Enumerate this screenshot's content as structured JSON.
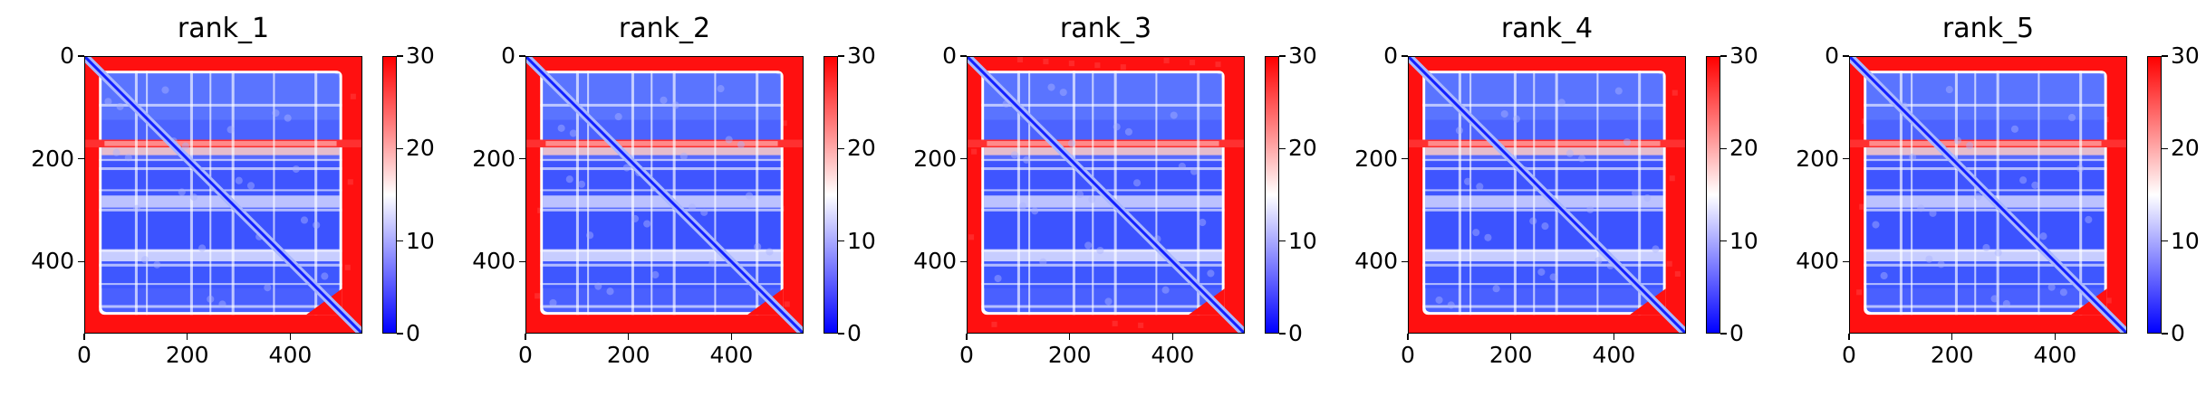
{
  "chart_data": [
    {
      "type": "heatmap",
      "title": "rank_1",
      "x_ticks": [
        "0",
        "200",
        "400"
      ],
      "y_ticks": [
        "0",
        "200",
        "400"
      ],
      "xlim": [
        0,
        540
      ],
      "ylim": [
        540,
        0
      ],
      "colorbar": {
        "min": 0,
        "max": 30,
        "ticks": [
          "0",
          "10",
          "20",
          "30"
        ]
      },
      "colormap": [
        "#0000ff",
        "#ffffff",
        "#ff0000"
      ]
    },
    {
      "type": "heatmap",
      "title": "rank_2",
      "x_ticks": [
        "0",
        "200",
        "400"
      ],
      "y_ticks": [
        "0",
        "200",
        "400"
      ],
      "xlim": [
        0,
        540
      ],
      "ylim": [
        540,
        0
      ],
      "colorbar": {
        "min": 0,
        "max": 30,
        "ticks": [
          "0",
          "10",
          "20",
          "30"
        ]
      },
      "colormap": [
        "#0000ff",
        "#ffffff",
        "#ff0000"
      ]
    },
    {
      "type": "heatmap",
      "title": "rank_3",
      "x_ticks": [
        "0",
        "200",
        "400"
      ],
      "y_ticks": [
        "0",
        "200",
        "400"
      ],
      "xlim": [
        0,
        540
      ],
      "ylim": [
        540,
        0
      ],
      "colorbar": {
        "min": 0,
        "max": 30,
        "ticks": [
          "0",
          "10",
          "20",
          "30"
        ]
      },
      "colormap": [
        "#0000ff",
        "#ffffff",
        "#ff0000"
      ]
    },
    {
      "type": "heatmap",
      "title": "rank_4",
      "x_ticks": [
        "0",
        "200",
        "400"
      ],
      "y_ticks": [
        "0",
        "200",
        "400"
      ],
      "xlim": [
        0,
        540
      ],
      "ylim": [
        540,
        0
      ],
      "colorbar": {
        "min": 0,
        "max": 30,
        "ticks": [
          "0",
          "10",
          "20",
          "30"
        ]
      },
      "colormap": [
        "#0000ff",
        "#ffffff",
        "#ff0000"
      ]
    },
    {
      "type": "heatmap",
      "title": "rank_5",
      "x_ticks": [
        "0",
        "200",
        "400"
      ],
      "y_ticks": [
        "0",
        "200",
        "400"
      ],
      "xlim": [
        0,
        540
      ],
      "ylim": [
        540,
        0
      ],
      "colorbar": {
        "min": 0,
        "max": 30,
        "ticks": [
          "0",
          "10",
          "20",
          "30"
        ]
      },
      "colormap": [
        "#0000ff",
        "#ffffff",
        "#ff0000"
      ]
    }
  ]
}
